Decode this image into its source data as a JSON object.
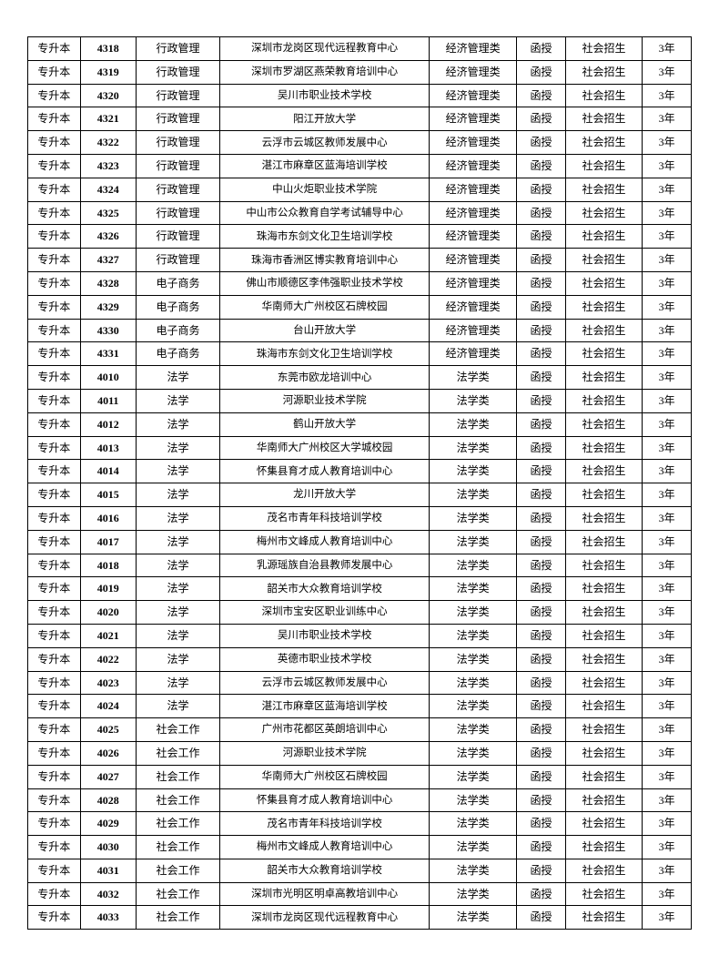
{
  "table": {
    "columns": [
      "level",
      "code",
      "major",
      "site",
      "category",
      "mode",
      "source",
      "duration"
    ],
    "col_classes": [
      "col-level",
      "col-code",
      "col-major",
      "col-site",
      "col-cat",
      "col-mode",
      "col-src",
      "col-dur"
    ],
    "rows": [
      [
        "专升本",
        "4318",
        "行政管理",
        "深圳市龙岗区现代远程教育中心",
        "经济管理类",
        "函授",
        "社会招生",
        "3年"
      ],
      [
        "专升本",
        "4319",
        "行政管理",
        "深圳市罗湖区燕荣教育培训中心",
        "经济管理类",
        "函授",
        "社会招生",
        "3年"
      ],
      [
        "专升本",
        "4320",
        "行政管理",
        "吴川市职业技术学校",
        "经济管理类",
        "函授",
        "社会招生",
        "3年"
      ],
      [
        "专升本",
        "4321",
        "行政管理",
        "阳江开放大学",
        "经济管理类",
        "函授",
        "社会招生",
        "3年"
      ],
      [
        "专升本",
        "4322",
        "行政管理",
        "云浮市云城区教师发展中心",
        "经济管理类",
        "函授",
        "社会招生",
        "3年"
      ],
      [
        "专升本",
        "4323",
        "行政管理",
        "湛江市麻章区蓝海培训学校",
        "经济管理类",
        "函授",
        "社会招生",
        "3年"
      ],
      [
        "专升本",
        "4324",
        "行政管理",
        "中山火炬职业技术学院",
        "经济管理类",
        "函授",
        "社会招生",
        "3年"
      ],
      [
        "专升本",
        "4325",
        "行政管理",
        "中山市公众教育自学考试辅导中心",
        "经济管理类",
        "函授",
        "社会招生",
        "3年"
      ],
      [
        "专升本",
        "4326",
        "行政管理",
        "珠海市东剑文化卫生培训学校",
        "经济管理类",
        "函授",
        "社会招生",
        "3年"
      ],
      [
        "专升本",
        "4327",
        "行政管理",
        "珠海市香洲区博实教育培训中心",
        "经济管理类",
        "函授",
        "社会招生",
        "3年"
      ],
      [
        "专升本",
        "4328",
        "电子商务",
        "佛山市顺德区李伟强职业技术学校",
        "经济管理类",
        "函授",
        "社会招生",
        "3年"
      ],
      [
        "专升本",
        "4329",
        "电子商务",
        "华南师大广州校区石牌校园",
        "经济管理类",
        "函授",
        "社会招生",
        "3年"
      ],
      [
        "专升本",
        "4330",
        "电子商务",
        "台山开放大学",
        "经济管理类",
        "函授",
        "社会招生",
        "3年"
      ],
      [
        "专升本",
        "4331",
        "电子商务",
        "珠海市东剑文化卫生培训学校",
        "经济管理类",
        "函授",
        "社会招生",
        "3年"
      ],
      [
        "专升本",
        "4010",
        "法学",
        "东莞市欧龙培训中心",
        "法学类",
        "函授",
        "社会招生",
        "3年"
      ],
      [
        "专升本",
        "4011",
        "法学",
        "河源职业技术学院",
        "法学类",
        "函授",
        "社会招生",
        "3年"
      ],
      [
        "专升本",
        "4012",
        "法学",
        "鹤山开放大学",
        "法学类",
        "函授",
        "社会招生",
        "3年"
      ],
      [
        "专升本",
        "4013",
        "法学",
        "华南师大广州校区大学城校园",
        "法学类",
        "函授",
        "社会招生",
        "3年"
      ],
      [
        "专升本",
        "4014",
        "法学",
        "怀集县育才成人教育培训中心",
        "法学类",
        "函授",
        "社会招生",
        "3年"
      ],
      [
        "专升本",
        "4015",
        "法学",
        "龙川开放大学",
        "法学类",
        "函授",
        "社会招生",
        "3年"
      ],
      [
        "专升本",
        "4016",
        "法学",
        "茂名市青年科技培训学校",
        "法学类",
        "函授",
        "社会招生",
        "3年"
      ],
      [
        "专升本",
        "4017",
        "法学",
        "梅州市文峰成人教育培训中心",
        "法学类",
        "函授",
        "社会招生",
        "3年"
      ],
      [
        "专升本",
        "4018",
        "法学",
        "乳源瑶族自治县教师发展中心",
        "法学类",
        "函授",
        "社会招生",
        "3年"
      ],
      [
        "专升本",
        "4019",
        "法学",
        "韶关市大众教育培训学校",
        "法学类",
        "函授",
        "社会招生",
        "3年"
      ],
      [
        "专升本",
        "4020",
        "法学",
        "深圳市宝安区职业训练中心",
        "法学类",
        "函授",
        "社会招生",
        "3年"
      ],
      [
        "专升本",
        "4021",
        "法学",
        "吴川市职业技术学校",
        "法学类",
        "函授",
        "社会招生",
        "3年"
      ],
      [
        "专升本",
        "4022",
        "法学",
        "英德市职业技术学校",
        "法学类",
        "函授",
        "社会招生",
        "3年"
      ],
      [
        "专升本",
        "4023",
        "法学",
        "云浮市云城区教师发展中心",
        "法学类",
        "函授",
        "社会招生",
        "3年"
      ],
      [
        "专升本",
        "4024",
        "法学",
        "湛江市麻章区蓝海培训学校",
        "法学类",
        "函授",
        "社会招生",
        "3年"
      ],
      [
        "专升本",
        "4025",
        "社会工作",
        "广州市花都区英朗培训中心",
        "法学类",
        "函授",
        "社会招生",
        "3年"
      ],
      [
        "专升本",
        "4026",
        "社会工作",
        "河源职业技术学院",
        "法学类",
        "函授",
        "社会招生",
        "3年"
      ],
      [
        "专升本",
        "4027",
        "社会工作",
        "华南师大广州校区石牌校园",
        "法学类",
        "函授",
        "社会招生",
        "3年"
      ],
      [
        "专升本",
        "4028",
        "社会工作",
        "怀集县育才成人教育培训中心",
        "法学类",
        "函授",
        "社会招生",
        "3年"
      ],
      [
        "专升本",
        "4029",
        "社会工作",
        "茂名市青年科技培训学校",
        "法学类",
        "函授",
        "社会招生",
        "3年"
      ],
      [
        "专升本",
        "4030",
        "社会工作",
        "梅州市文峰成人教育培训中心",
        "法学类",
        "函授",
        "社会招生",
        "3年"
      ],
      [
        "专升本",
        "4031",
        "社会工作",
        "韶关市大众教育培训学校",
        "法学类",
        "函授",
        "社会招生",
        "3年"
      ],
      [
        "专升本",
        "4032",
        "社会工作",
        "深圳市光明区明卓高教培训中心",
        "法学类",
        "函授",
        "社会招生",
        "3年"
      ],
      [
        "专升本",
        "4033",
        "社会工作",
        "深圳市龙岗区现代远程教育中心",
        "法学类",
        "函授",
        "社会招生",
        "3年"
      ]
    ]
  }
}
